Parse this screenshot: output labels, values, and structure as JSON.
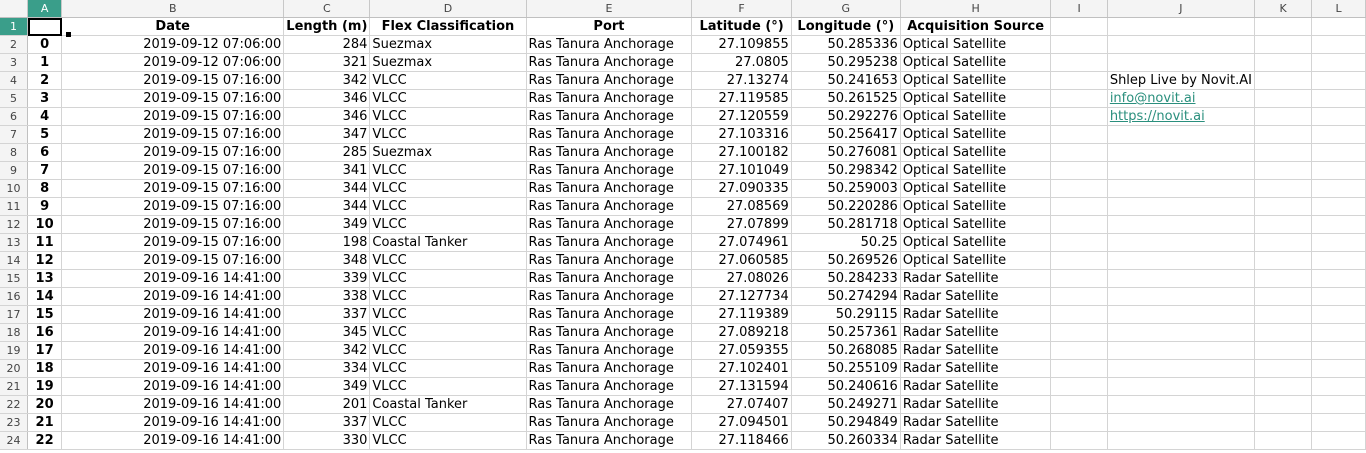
{
  "columns": [
    "A",
    "B",
    "C",
    "D",
    "E",
    "F",
    "G",
    "H",
    "I",
    "J",
    "K",
    "L"
  ],
  "header": {
    "index": "",
    "date": "Date",
    "length": "Length (m)",
    "flex": "Flex Classification",
    "port": "Port",
    "lat": "Latitude (°)",
    "lon": "Longitude (°)",
    "source": "Acquisition Source"
  },
  "rows": [
    {
      "row": "2",
      "index": "0",
      "date": "2019-09-12 07:06:00",
      "length": "284",
      "flex": "Suezmax",
      "port": "Ras Tanura Anchorage",
      "lat": "27.109855",
      "lon": "50.285336",
      "source": "Optical Satellite",
      "side": ""
    },
    {
      "row": "3",
      "index": "1",
      "date": "2019-09-12 07:06:00",
      "length": "321",
      "flex": "Suezmax",
      "port": "Ras Tanura Anchorage",
      "lat": "27.0805",
      "lon": "50.295238",
      "source": "Optical Satellite",
      "side": ""
    },
    {
      "row": "4",
      "index": "2",
      "date": "2019-09-15 07:16:00",
      "length": "342",
      "flex": "VLCC",
      "port": "Ras Tanura Anchorage",
      "lat": "27.13274",
      "lon": "50.241653",
      "source": "Optical Satellite",
      "side": "Shlep Live by Novit.AI"
    },
    {
      "row": "5",
      "index": "3",
      "date": "2019-09-15 07:16:00",
      "length": "346",
      "flex": "VLCC",
      "port": "Ras Tanura Anchorage",
      "lat": "27.119585",
      "lon": "50.261525",
      "source": "Optical Satellite",
      "side": "info@novit.ai"
    },
    {
      "row": "6",
      "index": "4",
      "date": "2019-09-15 07:16:00",
      "length": "346",
      "flex": "VLCC",
      "port": "Ras Tanura Anchorage",
      "lat": "27.120559",
      "lon": "50.292276",
      "source": "Optical Satellite",
      "side": "https://novit.ai"
    },
    {
      "row": "7",
      "index": "5",
      "date": "2019-09-15 07:16:00",
      "length": "347",
      "flex": "VLCC",
      "port": "Ras Tanura Anchorage",
      "lat": "27.103316",
      "lon": "50.256417",
      "source": "Optical Satellite",
      "side": ""
    },
    {
      "row": "8",
      "index": "6",
      "date": "2019-09-15 07:16:00",
      "length": "285",
      "flex": "Suezmax",
      "port": "Ras Tanura Anchorage",
      "lat": "27.100182",
      "lon": "50.276081",
      "source": "Optical Satellite",
      "side": ""
    },
    {
      "row": "9",
      "index": "7",
      "date": "2019-09-15 07:16:00",
      "length": "341",
      "flex": "VLCC",
      "port": "Ras Tanura Anchorage",
      "lat": "27.101049",
      "lon": "50.298342",
      "source": "Optical Satellite",
      "side": ""
    },
    {
      "row": "10",
      "index": "8",
      "date": "2019-09-15 07:16:00",
      "length": "344",
      "flex": "VLCC",
      "port": "Ras Tanura Anchorage",
      "lat": "27.090335",
      "lon": "50.259003",
      "source": "Optical Satellite",
      "side": ""
    },
    {
      "row": "11",
      "index": "9",
      "date": "2019-09-15 07:16:00",
      "length": "344",
      "flex": "VLCC",
      "port": "Ras Tanura Anchorage",
      "lat": "27.08569",
      "lon": "50.220286",
      "source": "Optical Satellite",
      "side": ""
    },
    {
      "row": "12",
      "index": "10",
      "date": "2019-09-15 07:16:00",
      "length": "349",
      "flex": "VLCC",
      "port": "Ras Tanura Anchorage",
      "lat": "27.07899",
      "lon": "50.281718",
      "source": "Optical Satellite",
      "side": ""
    },
    {
      "row": "13",
      "index": "11",
      "date": "2019-09-15 07:16:00",
      "length": "198",
      "flex": "Coastal Tanker",
      "port": "Ras Tanura Anchorage",
      "lat": "27.074961",
      "lon": "50.25",
      "source": "Optical Satellite",
      "side": ""
    },
    {
      "row": "14",
      "index": "12",
      "date": "2019-09-15 07:16:00",
      "length": "348",
      "flex": "VLCC",
      "port": "Ras Tanura Anchorage",
      "lat": "27.060585",
      "lon": "50.269526",
      "source": "Optical Satellite",
      "side": ""
    },
    {
      "row": "15",
      "index": "13",
      "date": "2019-09-16 14:41:00",
      "length": "339",
      "flex": "VLCC",
      "port": "Ras Tanura Anchorage",
      "lat": "27.08026",
      "lon": "50.284233",
      "source": "Radar Satellite",
      "side": ""
    },
    {
      "row": "16",
      "index": "14",
      "date": "2019-09-16 14:41:00",
      "length": "338",
      "flex": "VLCC",
      "port": "Ras Tanura Anchorage",
      "lat": "27.127734",
      "lon": "50.274294",
      "source": "Radar Satellite",
      "side": ""
    },
    {
      "row": "17",
      "index": "15",
      "date": "2019-09-16 14:41:00",
      "length": "337",
      "flex": "VLCC",
      "port": "Ras Tanura Anchorage",
      "lat": "27.119389",
      "lon": "50.29115",
      "source": "Radar Satellite",
      "side": ""
    },
    {
      "row": "18",
      "index": "16",
      "date": "2019-09-16 14:41:00",
      "length": "345",
      "flex": "VLCC",
      "port": "Ras Tanura Anchorage",
      "lat": "27.089218",
      "lon": "50.257361",
      "source": "Radar Satellite",
      "side": ""
    },
    {
      "row": "19",
      "index": "17",
      "date": "2019-09-16 14:41:00",
      "length": "342",
      "flex": "VLCC",
      "port": "Ras Tanura Anchorage",
      "lat": "27.059355",
      "lon": "50.268085",
      "source": "Radar Satellite",
      "side": ""
    },
    {
      "row": "20",
      "index": "18",
      "date": "2019-09-16 14:41:00",
      "length": "334",
      "flex": "VLCC",
      "port": "Ras Tanura Anchorage",
      "lat": "27.102401",
      "lon": "50.255109",
      "source": "Radar Satellite",
      "side": ""
    },
    {
      "row": "21",
      "index": "19",
      "date": "2019-09-16 14:41:00",
      "length": "349",
      "flex": "VLCC",
      "port": "Ras Tanura Anchorage",
      "lat": "27.131594",
      "lon": "50.240616",
      "source": "Radar Satellite",
      "side": ""
    },
    {
      "row": "22",
      "index": "20",
      "date": "2019-09-16 14:41:00",
      "length": "201",
      "flex": "Coastal Tanker",
      "port": "Ras Tanura Anchorage",
      "lat": "27.07407",
      "lon": "50.249271",
      "source": "Radar Satellite",
      "side": ""
    },
    {
      "row": "23",
      "index": "21",
      "date": "2019-09-16 14:41:00",
      "length": "337",
      "flex": "VLCC",
      "port": "Ras Tanura Anchorage",
      "lat": "27.094501",
      "lon": "50.294849",
      "source": "Radar Satellite",
      "side": ""
    },
    {
      "row": "24",
      "index": "22",
      "date": "2019-09-16 14:41:00",
      "length": "330",
      "flex": "VLCC",
      "port": "Ras Tanura Anchorage",
      "lat": "27.118466",
      "lon": "50.260334",
      "source": "Radar Satellite",
      "side": ""
    }
  ],
  "colors": {
    "active_header": "#3a9e8a",
    "link": "#2a8f7d",
    "grid": "#d4d4d4"
  }
}
